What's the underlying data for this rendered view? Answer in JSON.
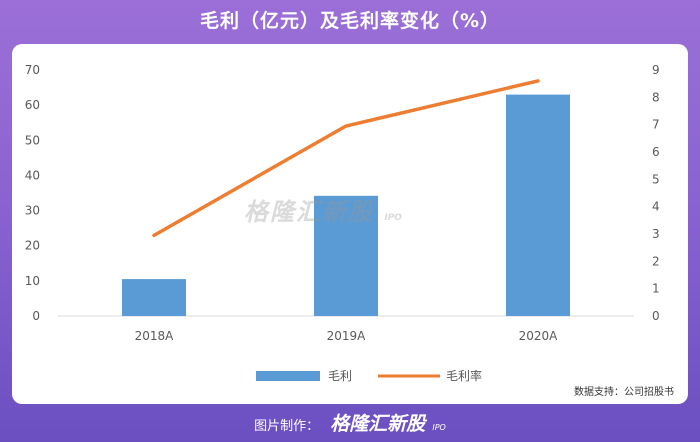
{
  "title": "毛利（亿元）及毛利率变化（%）",
  "source": "数据支持：公司招股书",
  "watermark": {
    "brand": "格隆汇新股",
    "sub": "IPO"
  },
  "footer": {
    "made_by": "图片制作：",
    "brand": "格隆汇新股",
    "sub": "IPO"
  },
  "colors": {
    "bar": "#5b9bd5",
    "line": "#ed7d31",
    "background": "#8a63d2"
  },
  "chart_data": {
    "type": "bar",
    "categories": [
      "2018A",
      "2019A",
      "2020A"
    ],
    "series": [
      {
        "name": "毛利",
        "type": "bar",
        "axis": "left",
        "values": [
          10.5,
          34.2,
          63.0
        ]
      },
      {
        "name": "毛利率",
        "type": "line",
        "axis": "right",
        "values": [
          2.95,
          6.95,
          8.6
        ]
      }
    ],
    "y_left": {
      "min": 0,
      "max": 70,
      "ticks": [
        0,
        10,
        20,
        30,
        40,
        50,
        60,
        70
      ]
    },
    "y_right": {
      "min": 0,
      "max": 9,
      "ticks": [
        0,
        1,
        2,
        3,
        4,
        5,
        6,
        7,
        8,
        9
      ]
    },
    "grid": false,
    "legend_position": "bottom"
  }
}
